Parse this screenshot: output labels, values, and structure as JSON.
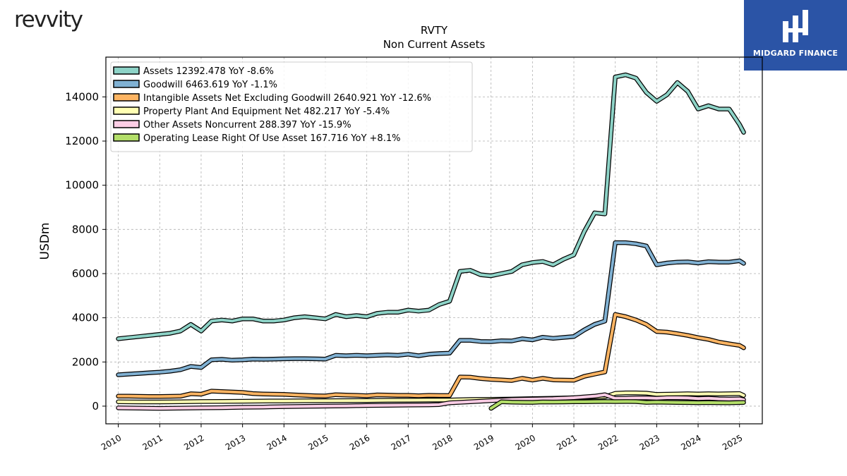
{
  "header": {
    "logo_text": "revvity",
    "brand_name": "MIDGARD FINANCE"
  },
  "chart_data": {
    "type": "line",
    "title": "RVTY",
    "subtitle": "Non Current  Assets",
    "ylabel": "USDm",
    "xlabel": "",
    "xlim": [
      2009.7,
      2025.55
    ],
    "ylim": [
      -800,
      15800
    ],
    "yticks": [
      0,
      2000,
      4000,
      6000,
      8000,
      10000,
      12000,
      14000
    ],
    "xticks": [
      "2010",
      "2011",
      "2012",
      "2013",
      "2014",
      "2015",
      "2016",
      "2017",
      "2018",
      "2019",
      "2020",
      "2021",
      "2022",
      "2023",
      "2024",
      "2025"
    ],
    "grid": true,
    "legend_position": "top-left",
    "series": [
      {
        "name": "Assets",
        "legend": "Assets  12392.478 YoY -8.6%",
        "color": "#8dd3c7",
        "points": [
          [
            2010.0,
            3050
          ],
          [
            2010.25,
            3100
          ],
          [
            2010.5,
            3150
          ],
          [
            2010.75,
            3200
          ],
          [
            2011.0,
            3250
          ],
          [
            2011.25,
            3300
          ],
          [
            2011.5,
            3400
          ],
          [
            2011.75,
            3700
          ],
          [
            2012.0,
            3400
          ],
          [
            2012.25,
            3850
          ],
          [
            2012.5,
            3900
          ],
          [
            2012.75,
            3850
          ],
          [
            2013.0,
            3950
          ],
          [
            2013.25,
            3950
          ],
          [
            2013.5,
            3850
          ],
          [
            2013.75,
            3850
          ],
          [
            2014.0,
            3900
          ],
          [
            2014.25,
            4000
          ],
          [
            2014.5,
            4050
          ],
          [
            2014.75,
            4000
          ],
          [
            2015.0,
            3950
          ],
          [
            2015.25,
            4150
          ],
          [
            2015.5,
            4050
          ],
          [
            2015.75,
            4100
          ],
          [
            2016.0,
            4050
          ],
          [
            2016.25,
            4200
          ],
          [
            2016.5,
            4250
          ],
          [
            2016.75,
            4250
          ],
          [
            2017.0,
            4350
          ],
          [
            2017.25,
            4300
          ],
          [
            2017.5,
            4350
          ],
          [
            2017.75,
            4600
          ],
          [
            2018.0,
            4750
          ],
          [
            2018.25,
            6100
          ],
          [
            2018.5,
            6150
          ],
          [
            2018.75,
            5950
          ],
          [
            2019.0,
            5900
          ],
          [
            2019.25,
            6000
          ],
          [
            2019.5,
            6100
          ],
          [
            2019.75,
            6400
          ],
          [
            2020.0,
            6500
          ],
          [
            2020.25,
            6550
          ],
          [
            2020.5,
            6400
          ],
          [
            2020.75,
            6650
          ],
          [
            2021.0,
            6850
          ],
          [
            2021.25,
            7900
          ],
          [
            2021.5,
            8750
          ],
          [
            2021.75,
            8700
          ],
          [
            2022.0,
            14900
          ],
          [
            2022.25,
            15000
          ],
          [
            2022.5,
            14850
          ],
          [
            2022.75,
            14200
          ],
          [
            2023.0,
            13800
          ],
          [
            2023.25,
            14100
          ],
          [
            2023.5,
            14650
          ],
          [
            2023.75,
            14250
          ],
          [
            2024.0,
            13450
          ],
          [
            2024.25,
            13600
          ],
          [
            2024.5,
            13450
          ],
          [
            2024.75,
            13450
          ],
          [
            2025.0,
            12750
          ],
          [
            2025.1,
            12392.478
          ]
        ]
      },
      {
        "name": "Goodwill",
        "legend": "Goodwill  6463.619 YoY -1.1%",
        "color": "#80b1d3",
        "points": [
          [
            2010.0,
            1420
          ],
          [
            2010.25,
            1450
          ],
          [
            2010.5,
            1480
          ],
          [
            2010.75,
            1510
          ],
          [
            2011.0,
            1540
          ],
          [
            2011.25,
            1580
          ],
          [
            2011.5,
            1650
          ],
          [
            2011.75,
            1800
          ],
          [
            2012.0,
            1750
          ],
          [
            2012.25,
            2100
          ],
          [
            2012.5,
            2120
          ],
          [
            2012.75,
            2080
          ],
          [
            2013.0,
            2100
          ],
          [
            2013.25,
            2130
          ],
          [
            2013.5,
            2120
          ],
          [
            2013.75,
            2130
          ],
          [
            2014.0,
            2140
          ],
          [
            2014.25,
            2150
          ],
          [
            2014.5,
            2150
          ],
          [
            2014.75,
            2140
          ],
          [
            2015.0,
            2130
          ],
          [
            2015.25,
            2300
          ],
          [
            2015.5,
            2280
          ],
          [
            2015.75,
            2300
          ],
          [
            2016.0,
            2280
          ],
          [
            2016.25,
            2300
          ],
          [
            2016.5,
            2320
          ],
          [
            2016.75,
            2300
          ],
          [
            2017.0,
            2350
          ],
          [
            2017.25,
            2280
          ],
          [
            2017.5,
            2350
          ],
          [
            2017.75,
            2380
          ],
          [
            2018.0,
            2400
          ],
          [
            2018.25,
            2980
          ],
          [
            2018.5,
            2980
          ],
          [
            2018.75,
            2930
          ],
          [
            2019.0,
            2920
          ],
          [
            2019.25,
            2960
          ],
          [
            2019.5,
            2950
          ],
          [
            2019.75,
            3050
          ],
          [
            2020.0,
            3000
          ],
          [
            2020.25,
            3120
          ],
          [
            2020.5,
            3070
          ],
          [
            2020.75,
            3110
          ],
          [
            2021.0,
            3150
          ],
          [
            2021.25,
            3450
          ],
          [
            2021.5,
            3700
          ],
          [
            2021.75,
            3850
          ],
          [
            2022.0,
            7400
          ],
          [
            2022.25,
            7400
          ],
          [
            2022.5,
            7350
          ],
          [
            2022.75,
            7250
          ],
          [
            2023.0,
            6400
          ],
          [
            2023.25,
            6480
          ],
          [
            2023.5,
            6520
          ],
          [
            2023.75,
            6530
          ],
          [
            2024.0,
            6480
          ],
          [
            2024.25,
            6540
          ],
          [
            2024.5,
            6520
          ],
          [
            2024.75,
            6520
          ],
          [
            2025.0,
            6580
          ],
          [
            2025.1,
            6463.619
          ]
        ]
      },
      {
        "name": "Intangible Assets Net Excluding Goodwill",
        "legend": "Intangible Assets Net Excluding Goodwill  2640.921 YoY -12.6%",
        "color": "#fdb462",
        "points": [
          [
            2010.0,
            450
          ],
          [
            2010.25,
            450
          ],
          [
            2010.5,
            445
          ],
          [
            2010.75,
            440
          ],
          [
            2011.0,
            440
          ],
          [
            2011.25,
            445
          ],
          [
            2011.5,
            450
          ],
          [
            2011.75,
            560
          ],
          [
            2012.0,
            540
          ],
          [
            2012.25,
            680
          ],
          [
            2012.5,
            660
          ],
          [
            2012.75,
            640
          ],
          [
            2013.0,
            620
          ],
          [
            2013.25,
            570
          ],
          [
            2013.5,
            550
          ],
          [
            2013.75,
            540
          ],
          [
            2014.0,
            530
          ],
          [
            2014.25,
            510
          ],
          [
            2014.5,
            490
          ],
          [
            2014.75,
            470
          ],
          [
            2015.0,
            460
          ],
          [
            2015.25,
            520
          ],
          [
            2015.5,
            500
          ],
          [
            2015.75,
            490
          ],
          [
            2016.0,
            470
          ],
          [
            2016.25,
            510
          ],
          [
            2016.5,
            500
          ],
          [
            2016.75,
            490
          ],
          [
            2017.0,
            490
          ],
          [
            2017.25,
            470
          ],
          [
            2017.5,
            490
          ],
          [
            2017.75,
            480
          ],
          [
            2018.0,
            480
          ],
          [
            2018.25,
            1320
          ],
          [
            2018.5,
            1310
          ],
          [
            2018.75,
            1250
          ],
          [
            2019.0,
            1210
          ],
          [
            2019.25,
            1190
          ],
          [
            2019.5,
            1160
          ],
          [
            2019.75,
            1260
          ],
          [
            2020.0,
            1180
          ],
          [
            2020.25,
            1260
          ],
          [
            2020.5,
            1190
          ],
          [
            2020.75,
            1180
          ],
          [
            2021.0,
            1170
          ],
          [
            2021.25,
            1350
          ],
          [
            2021.5,
            1450
          ],
          [
            2021.75,
            1550
          ],
          [
            2022.0,
            4150
          ],
          [
            2022.25,
            4050
          ],
          [
            2022.5,
            3900
          ],
          [
            2022.75,
            3700
          ],
          [
            2023.0,
            3380
          ],
          [
            2023.25,
            3350
          ],
          [
            2023.5,
            3280
          ],
          [
            2023.75,
            3200
          ],
          [
            2024.0,
            3100
          ],
          [
            2024.25,
            3020
          ],
          [
            2024.5,
            2900
          ],
          [
            2024.75,
            2820
          ],
          [
            2025.0,
            2750
          ],
          [
            2025.1,
            2640.921
          ]
        ]
      },
      {
        "name": "Property Plant And Equipment Net",
        "legend": "Property Plant And Equipment Net  482.217 YoY -5.4%",
        "color": "#ffffb3",
        "points": [
          [
            2010.0,
            200
          ],
          [
            2010.5,
            190
          ],
          [
            2011.0,
            190
          ],
          [
            2011.5,
            200
          ],
          [
            2012.0,
            210
          ],
          [
            2012.5,
            215
          ],
          [
            2013.0,
            220
          ],
          [
            2013.5,
            230
          ],
          [
            2014.0,
            235
          ],
          [
            2014.5,
            240
          ],
          [
            2015.0,
            245
          ],
          [
            2015.5,
            250
          ],
          [
            2016.0,
            255
          ],
          [
            2016.5,
            265
          ],
          [
            2017.0,
            270
          ],
          [
            2017.5,
            275
          ],
          [
            2018.0,
            280
          ],
          [
            2018.5,
            300
          ],
          [
            2019.0,
            310
          ],
          [
            2019.5,
            320
          ],
          [
            2020.0,
            340
          ],
          [
            2020.5,
            360
          ],
          [
            2021.0,
            380
          ],
          [
            2021.5,
            410
          ],
          [
            2021.75,
            420
          ],
          [
            2022.0,
            580
          ],
          [
            2022.25,
            600
          ],
          [
            2022.5,
            600
          ],
          [
            2022.75,
            590
          ],
          [
            2023.0,
            530
          ],
          [
            2023.25,
            540
          ],
          [
            2023.5,
            550
          ],
          [
            2023.75,
            560
          ],
          [
            2024.0,
            550
          ],
          [
            2024.25,
            560
          ],
          [
            2024.5,
            555
          ],
          [
            2024.75,
            560
          ],
          [
            2025.0,
            570
          ],
          [
            2025.1,
            482.217
          ]
        ]
      },
      {
        "name": "Other Assets Noncurrent",
        "legend": "Other Assets Noncurrent  288.397 YoY -15.9%",
        "color": "#fccde5",
        "points": [
          [
            2010.0,
            -80
          ],
          [
            2010.5,
            -90
          ],
          [
            2011.0,
            -100
          ],
          [
            2011.5,
            -90
          ],
          [
            2012.0,
            -80
          ],
          [
            2012.5,
            -70
          ],
          [
            2013.0,
            -50
          ],
          [
            2013.5,
            -40
          ],
          [
            2014.0,
            -20
          ],
          [
            2014.5,
            -10
          ],
          [
            2015.0,
            0
          ],
          [
            2015.5,
            10
          ],
          [
            2015.75,
            20
          ],
          [
            2016.0,
            30
          ],
          [
            2016.5,
            40
          ],
          [
            2017.0,
            50
          ],
          [
            2017.5,
            60
          ],
          [
            2017.75,
            70
          ],
          [
            2018.0,
            150
          ],
          [
            2018.5,
            200
          ],
          [
            2019.0,
            250
          ],
          [
            2019.5,
            300
          ],
          [
            2020.0,
            320
          ],
          [
            2020.5,
            340
          ],
          [
            2021.0,
            380
          ],
          [
            2021.5,
            450
          ],
          [
            2021.75,
            520
          ],
          [
            2022.0,
            350
          ],
          [
            2022.25,
            360
          ],
          [
            2022.5,
            370
          ],
          [
            2022.75,
            370
          ],
          [
            2023.0,
            360
          ],
          [
            2023.25,
            380
          ],
          [
            2023.5,
            380
          ],
          [
            2023.75,
            370
          ],
          [
            2024.0,
            340
          ],
          [
            2024.25,
            360
          ],
          [
            2024.5,
            330
          ],
          [
            2024.75,
            320
          ],
          [
            2025.0,
            330
          ],
          [
            2025.1,
            288.397
          ]
        ]
      },
      {
        "name": "Operating Lease Right Of Use Asset",
        "legend": "Operating Lease Right Of Use Asset  167.716 YoY +8.1%",
        "color": "#b3de69",
        "points": [
          [
            2019.0,
            -100
          ],
          [
            2019.25,
            200
          ],
          [
            2019.5,
            180
          ],
          [
            2019.75,
            175
          ],
          [
            2020.0,
            170
          ],
          [
            2020.25,
            190
          ],
          [
            2020.5,
            185
          ],
          [
            2020.75,
            190
          ],
          [
            2021.0,
            195
          ],
          [
            2021.25,
            200
          ],
          [
            2021.5,
            205
          ],
          [
            2021.75,
            210
          ],
          [
            2022.0,
            205
          ],
          [
            2022.25,
            210
          ],
          [
            2022.5,
            205
          ],
          [
            2022.75,
            170
          ],
          [
            2023.0,
            180
          ],
          [
            2023.25,
            175
          ],
          [
            2023.5,
            165
          ],
          [
            2023.75,
            160
          ],
          [
            2024.0,
            155
          ],
          [
            2024.25,
            160
          ],
          [
            2024.5,
            155
          ],
          [
            2024.75,
            150
          ],
          [
            2025.0,
            160
          ],
          [
            2025.1,
            167.716
          ]
        ]
      }
    ]
  }
}
